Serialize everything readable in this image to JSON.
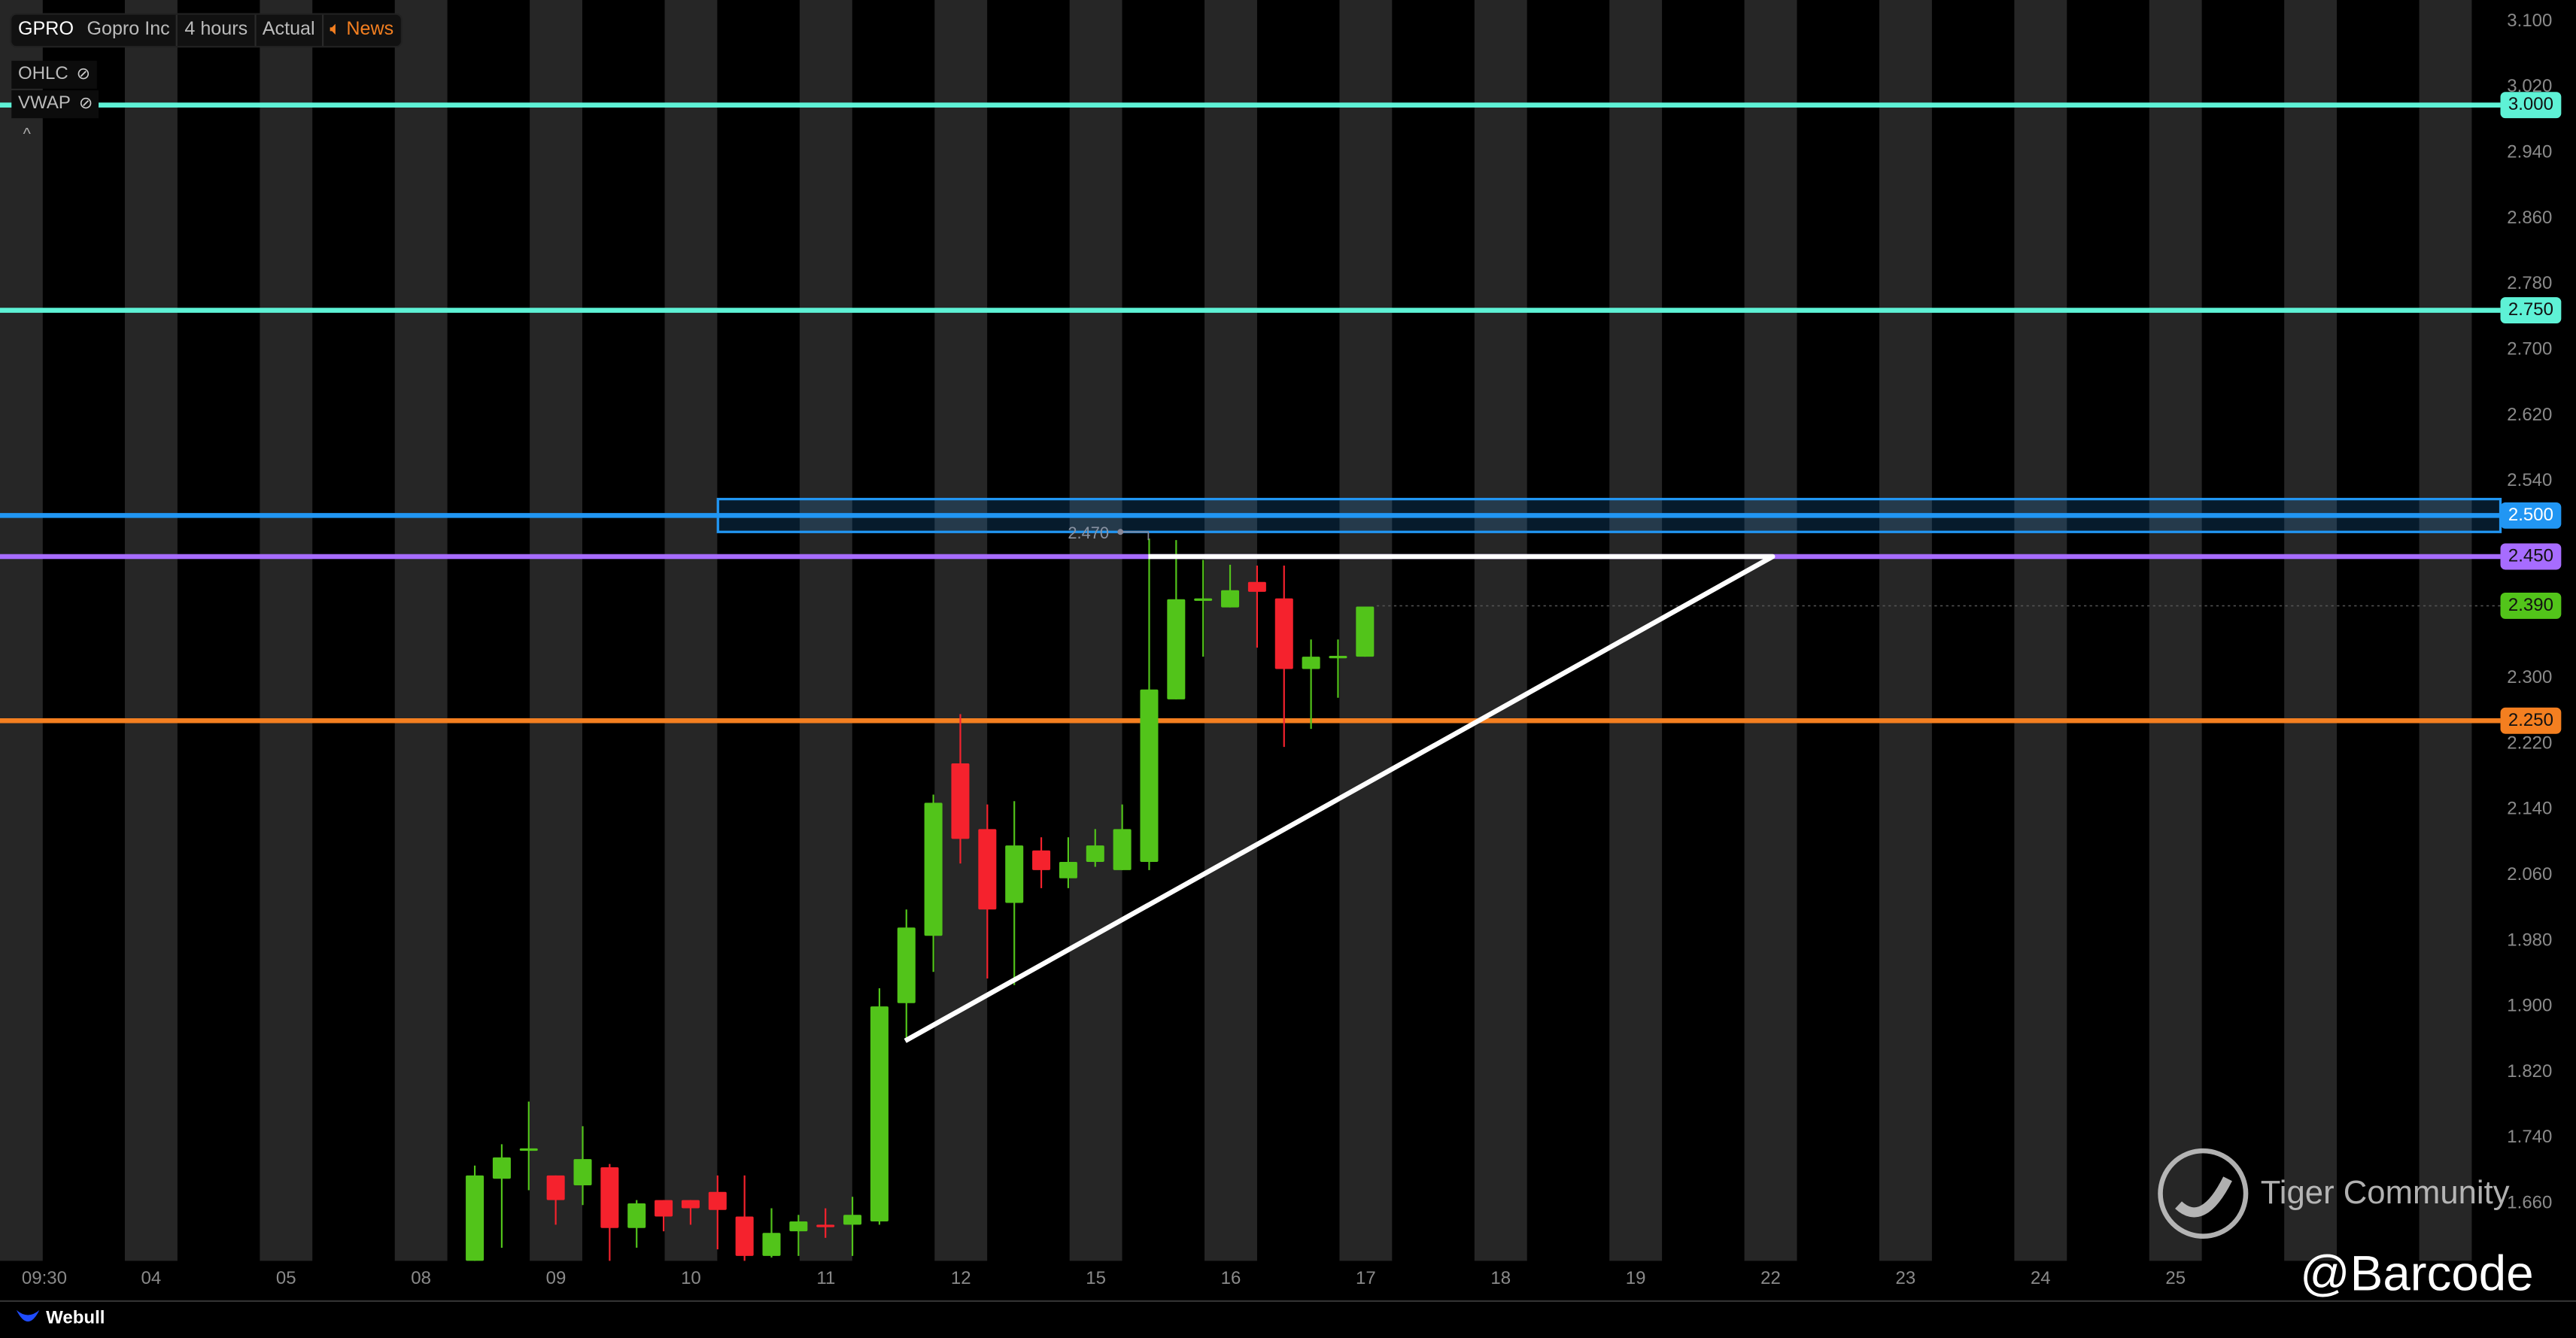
{
  "header": {
    "symbol": "GPRO",
    "name": "Gopro Inc",
    "interval": "4 hours",
    "mode": "Actual",
    "news": "News",
    "news_icon": "speaker-icon"
  },
  "indicators": [
    {
      "label": "OHLC",
      "icon": "eye-off-icon"
    },
    {
      "label": "VWAP",
      "icon": "eye-off-icon"
    }
  ],
  "footer": {
    "brand": "Webull",
    "watermark": "Tiger Community",
    "handle": "@Barcode"
  },
  "colors": {
    "up": "#52c41a",
    "down": "#f5222d",
    "teal": "#5ef2d6",
    "blue": "#2196f3",
    "purple": "#a76cff",
    "orange": "#f47f20",
    "stripe": "#262626"
  },
  "chart_data": {
    "type": "candlestick",
    "ylim": [
      1.59,
      3.128
    ],
    "y_ticks": [
      "3.100",
      "3.020",
      "2.940",
      "2.860",
      "2.780",
      "2.700",
      "2.620",
      "2.540",
      "2.300",
      "2.220",
      "2.140",
      "2.060",
      "1.980",
      "1.900",
      "1.820",
      "1.740",
      "1.660"
    ],
    "x_ticks": [
      "09:30",
      "04",
      "05",
      "08",
      "09",
      "10",
      "11",
      "12",
      "15",
      "16",
      "17",
      "18",
      "19",
      "22",
      "23",
      "24",
      "25"
    ],
    "last_price": "2.390",
    "ohlc": [
      [
        1.592,
        1.708,
        1.59,
        1.696
      ],
      [
        1.692,
        1.734,
        1.608,
        1.718
      ],
      [
        1.728,
        1.786,
        1.678,
        1.729
      ],
      [
        1.696,
        1.696,
        1.636,
        1.666
      ],
      [
        1.684,
        1.756,
        1.66,
        1.716
      ],
      [
        1.706,
        1.71,
        1.592,
        1.632
      ],
      [
        1.632,
        1.666,
        1.608,
        1.662
      ],
      [
        1.666,
        1.666,
        1.628,
        1.646
      ],
      [
        1.666,
        1.666,
        1.636,
        1.656
      ],
      [
        1.676,
        1.696,
        1.606,
        1.654
      ],
      [
        1.646,
        1.696,
        1.592,
        1.598
      ],
      [
        1.598,
        1.656,
        1.596,
        1.626
      ],
      [
        1.628,
        1.648,
        1.598,
        1.64
      ],
      [
        1.636,
        1.656,
        1.62,
        1.634
      ],
      [
        1.636,
        1.67,
        1.598,
        1.648
      ],
      [
        1.64,
        1.924,
        1.636,
        1.902
      ],
      [
        1.906,
        2.02,
        1.864,
        1.998
      ],
      [
        1.988,
        2.16,
        1.944,
        2.15
      ],
      [
        2.198,
        2.258,
        2.076,
        2.106
      ],
      [
        2.118,
        2.148,
        1.936,
        2.02
      ],
      [
        2.028,
        2.152,
        1.928,
        2.098
      ],
      [
        2.092,
        2.108,
        2.046,
        2.068
      ],
      [
        2.058,
        2.108,
        2.046,
        2.078
      ],
      [
        2.078,
        2.118,
        2.072,
        2.098
      ],
      [
        2.068,
        2.148,
        2.068,
        2.118
      ],
      [
        2.078,
        2.472,
        2.068,
        2.288
      ],
      [
        2.276,
        2.47,
        2.276,
        2.398
      ],
      [
        2.398,
        2.446,
        2.328,
        2.399
      ],
      [
        2.388,
        2.44,
        2.388,
        2.409
      ],
      [
        2.419,
        2.439,
        2.339,
        2.407
      ],
      [
        2.399,
        2.439,
        2.218,
        2.313
      ],
      [
        2.313,
        2.349,
        2.24,
        2.328
      ],
      [
        2.328,
        2.349,
        2.278,
        2.329
      ],
      [
        2.328,
        2.389,
        2.328,
        2.389
      ]
    ],
    "horizontal_lines": [
      {
        "price": "3.000",
        "color": "#5ef2d6"
      },
      {
        "price": "2.750",
        "color": "#5ef2d6"
      },
      {
        "price": "2.500",
        "color": "#2196f3"
      },
      {
        "price": "2.450",
        "color": "#a76cff"
      },
      {
        "price": "2.250",
        "color": "#f47f20"
      }
    ],
    "zone": {
      "top": 2.52,
      "bottom": 2.48,
      "color": "#2196f3"
    },
    "annotation": "2.470",
    "triangle": {
      "top_price": 2.45,
      "bottom_price": 1.86,
      "color": "#ffffff"
    }
  }
}
